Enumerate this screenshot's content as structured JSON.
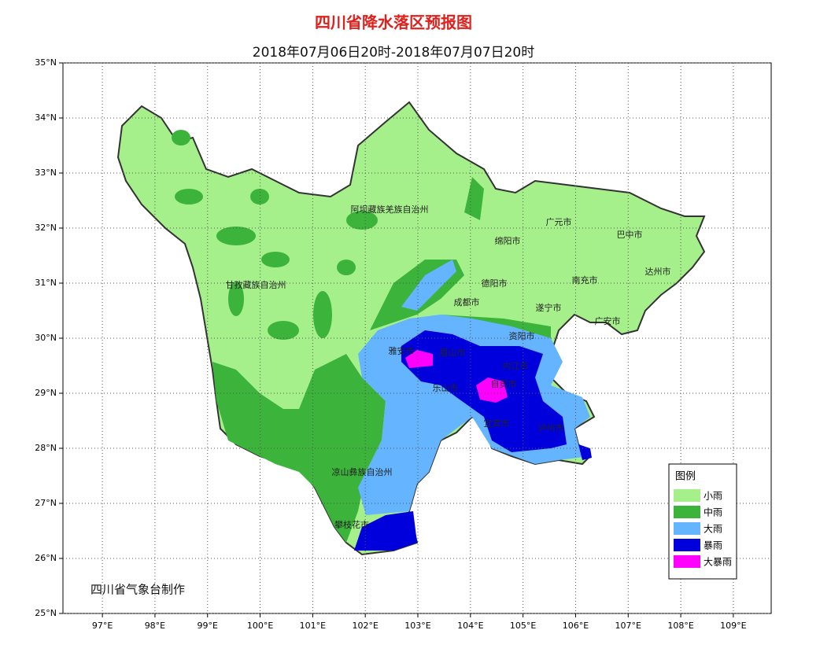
{
  "title": "四川省降水落区预报图",
  "subtitle": "2018年07月06日20时-2018年07月07日20时",
  "credit": "四川省气象台制作",
  "map": {
    "xlim": [
      96.25,
      109.72
    ],
    "ylim": [
      25,
      35
    ],
    "xticks": [
      {
        "value": 97,
        "label": "97°E"
      },
      {
        "value": 98,
        "label": "98°E"
      },
      {
        "value": 99,
        "label": "99°E"
      },
      {
        "value": 100,
        "label": "100°E"
      },
      {
        "value": 101,
        "label": "101°E"
      },
      {
        "value": 102,
        "label": "102°E"
      },
      {
        "value": 103,
        "label": "103°E"
      },
      {
        "value": 104,
        "label": "104°E"
      },
      {
        "value": 105,
        "label": "105°E"
      },
      {
        "value": 106,
        "label": "106°E"
      },
      {
        "value": 107,
        "label": "107°E"
      },
      {
        "value": 108,
        "label": "108°E"
      },
      {
        "value": 109,
        "label": "109°E"
      }
    ],
    "yticks": [
      {
        "value": 25,
        "label": "25°N"
      },
      {
        "value": 26,
        "label": "26°N"
      },
      {
        "value": 27,
        "label": "27°N"
      },
      {
        "value": 28,
        "label": "28°N"
      },
      {
        "value": 29,
        "label": "29°N"
      },
      {
        "value": 30,
        "label": "30°N"
      },
      {
        "value": 31,
        "label": "31°N"
      },
      {
        "value": 32,
        "label": "32°N"
      },
      {
        "value": 33,
        "label": "33°N"
      },
      {
        "value": 34,
        "label": "34°N"
      },
      {
        "value": 35,
        "label": "35°N"
      }
    ],
    "places": [
      "阿坝藏族羌族自治州",
      "广元市",
      "巴中市",
      "绵阳市",
      "甘孜藏族自治州",
      "德阳市",
      "南充市",
      "达州市",
      "成都市",
      "遂宁市",
      "广安市",
      "资阳市",
      "雅安市",
      "眉山市",
      "内江市",
      "乐山市",
      "自贡市",
      "宜宾市",
      "泸州市",
      "凉山彝族自治州",
      "攀枝花市"
    ],
    "legend": {
      "title": "图例",
      "items": [
        {
          "name": "小雨",
          "color": "#a6f08c"
        },
        {
          "name": "中雨",
          "color": "#3cb43c"
        },
        {
          "name": "大雨",
          "color": "#64b4ff"
        },
        {
          "name": "暴雨",
          "color": "#0000dc"
        },
        {
          "name": "大暴雨",
          "color": "#ff00ff"
        }
      ]
    }
  }
}
